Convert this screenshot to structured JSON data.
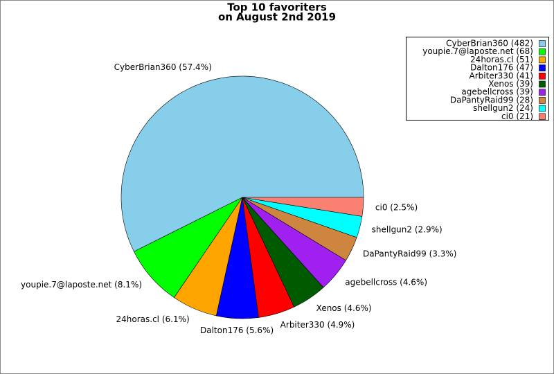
{
  "chart_data": {
    "type": "pie",
    "title": "Top 10 favoriters",
    "subtitle": "on August 2nd 2019",
    "values": [
      482,
      68,
      51,
      47,
      41,
      39,
      39,
      28,
      24,
      21
    ],
    "slice_labels": [
      "CyberBrian360 (57.4%)",
      "youpie.7@laposte.net (8.1%)",
      "24horas.cl (6.1%)",
      "Dalton176 (5.6%)",
      "Arbiter330 (4.9%)",
      "Xenos (4.6%)",
      "agebellcross (4.6%)",
      "DaPantyRaid99 (3.3%)",
      "shellgun2 (2.9%)",
      "ci0 (2.5%)"
    ],
    "legend_labels": [
      "CyberBrian360 (482)",
      "youpie.7@laposte.net (68)",
      "24horas.cl (51)",
      "Dalton176 (47)",
      "Arbiter330 (41)",
      "Xenos (39)",
      "agebellcross (39)",
      "DaPantyRaid99 (28)",
      "shellgun2 (24)",
      "ci0 (21)"
    ],
    "colors": [
      "#87ceeb",
      "#00ff00",
      "#ffa500",
      "#0000ff",
      "#ff0000",
      "#005a00",
      "#a020f0",
      "#cd853f",
      "#00ffff",
      "#fa8072"
    ],
    "legend_position": "upper right"
  }
}
